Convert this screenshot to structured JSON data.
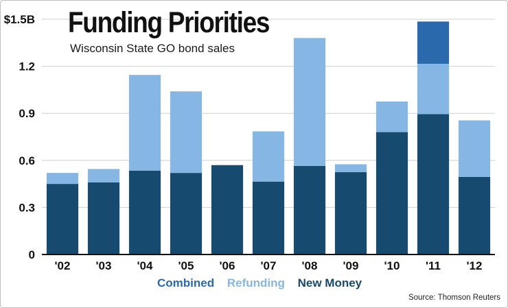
{
  "header": {
    "title": "Funding Priorities",
    "subtitle": "Wisconsin State GO bond sales"
  },
  "footer": {
    "source": "Source: Thomson Reuters"
  },
  "colors": {
    "new_money": "#164a6f",
    "refunding": "#86b6e3",
    "combined": "#2a69ab",
    "axis": "#111111",
    "grid": "#cfcfcf"
  },
  "chart_data": {
    "type": "bar",
    "stacked": true,
    "title": "Funding Priorities",
    "subtitle": "Wisconsin State GO bond sales",
    "xlabel": "",
    "ylabel": "",
    "ylim": [
      0,
      1.5
    ],
    "grid": true,
    "yticks": [
      0,
      0.3,
      0.6,
      0.9,
      1.2,
      1.5
    ],
    "ytick_labels": [
      "0",
      "0.3",
      "0.6",
      "0.9",
      "1.2",
      "$1.5B"
    ],
    "categories": [
      "'02",
      "'03",
      "'04",
      "'05",
      "'06",
      "'07",
      "'08",
      "'09",
      "'10",
      "'11",
      "'12"
    ],
    "legend_position": "bottom-center",
    "series": [
      {
        "name": "New Money",
        "color": "#164a6f",
        "values": [
          0.45,
          0.46,
          0.535,
          0.52,
          0.57,
          0.465,
          0.565,
          0.525,
          0.78,
          0.895,
          0.495
        ]
      },
      {
        "name": "Refunding",
        "color": "#86b6e3",
        "values": [
          0.07,
          0.085,
          0.61,
          0.52,
          0.0,
          0.32,
          0.815,
          0.05,
          0.195,
          0.32,
          0.36
        ]
      },
      {
        "name": "Combined",
        "color": "#2a69ab",
        "values": [
          0,
          0,
          0,
          0,
          0,
          0,
          0,
          0,
          0,
          0.27,
          0
        ]
      }
    ],
    "legend": [
      {
        "label": "Combined",
        "color": "#2a69ab"
      },
      {
        "label": "Refunding",
        "color": "#86b6e3"
      },
      {
        "label": "New Money",
        "color": "#164a6f"
      }
    ],
    "source": "Source: Thomson Reuters"
  }
}
